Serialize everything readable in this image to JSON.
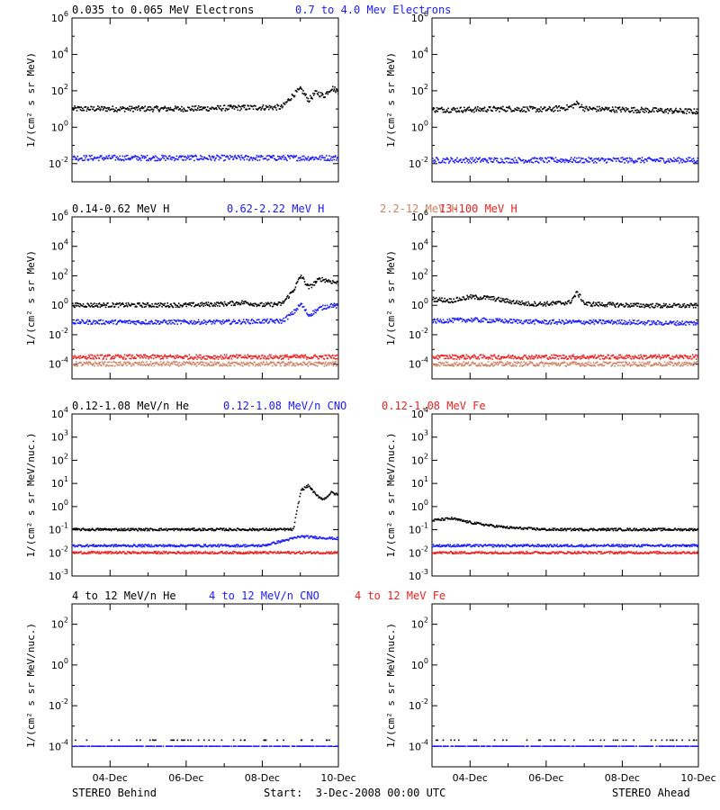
{
  "footer": {
    "left": "STEREO Behind",
    "center": "Start:  3-Dec-2008 00:00 UTC",
    "right": "STEREO Ahead"
  },
  "x_ticks": [
    "04-Dec",
    "06-Dec",
    "08-Dec",
    "10-Dec"
  ],
  "x_range_days": [
    0,
    7
  ],
  "rows": [
    {
      "titles": [
        {
          "text": "0.035 to 0.065 MeV Electrons",
          "color": "#000000"
        },
        {
          "text": "0.7 to 4.0 Mev Electrons",
          "color": "#1a1aff"
        }
      ],
      "ylabel": "1/(cm² s sr MeV)",
      "yticks": [
        {
          "base": "10",
          "exp": "6"
        },
        {
          "base": "10",
          "exp": "4"
        },
        {
          "base": "10",
          "exp": "2"
        },
        {
          "base": "10",
          "exp": "0"
        },
        {
          "base": "10",
          "exp": "-2"
        }
      ]
    },
    {
      "titles": [
        {
          "text": "0.14-0.62 MeV H",
          "color": "#000000"
        },
        {
          "text": "0.62-2.22 MeV H",
          "color": "#1a1aff"
        },
        {
          "text": "2.2-12 MeV H",
          "color": "#d08060"
        },
        {
          "text": "13-100 MeV H",
          "color": "#ee2020"
        }
      ],
      "ylabel": "1/(cm² s sr MeV)",
      "yticks": [
        {
          "base": "10",
          "exp": "6"
        },
        {
          "base": "10",
          "exp": "4"
        },
        {
          "base": "10",
          "exp": "2"
        },
        {
          "base": "10",
          "exp": "0"
        },
        {
          "base": "10",
          "exp": "-2"
        },
        {
          "base": "10",
          "exp": "-4"
        }
      ]
    },
    {
      "titles": [
        {
          "text": "0.12-1.08 MeV/n He",
          "color": "#000000"
        },
        {
          "text": "0.12-1.08 MeV/n CNO",
          "color": "#1a1aff"
        },
        {
          "text": "0.12-1.08 MeV Fe",
          "color": "#ee2020"
        }
      ],
      "ylabel": "1/(cm² s sr MeV/nuc.)",
      "yticks": [
        {
          "base": "10",
          "exp": "4"
        },
        {
          "base": "10",
          "exp": "3"
        },
        {
          "base": "10",
          "exp": "2"
        },
        {
          "base": "10",
          "exp": "1"
        },
        {
          "base": "10",
          "exp": "0"
        },
        {
          "base": "10",
          "exp": "-1"
        },
        {
          "base": "10",
          "exp": "-2"
        },
        {
          "base": "10",
          "exp": "-3"
        }
      ]
    },
    {
      "titles": [
        {
          "text": "4 to 12 MeV/n He",
          "color": "#000000"
        },
        {
          "text": "4 to 12 MeV/n CNO",
          "color": "#1a1aff"
        },
        {
          "text": "4 to 12 MeV Fe",
          "color": "#ee2020"
        }
      ],
      "ylabel": "1/(cm² s sr MeV/nuc.)",
      "yticks": [
        {
          "base": "10",
          "exp": "2"
        },
        {
          "base": "10",
          "exp": "0"
        },
        {
          "base": "10",
          "exp": "-2"
        },
        {
          "base": "10",
          "exp": "-4"
        }
      ]
    }
  ],
  "chart_data": [
    {
      "type": "scatter",
      "panel": "electrons-behind",
      "x_unit": "days since 3-Dec-2008 00:00 UTC",
      "y_scale": "log",
      "ylim": [
        0.001,
        1000000
      ],
      "series": [
        {
          "name": "0.035 to 0.065 MeV Electrons",
          "color": "#000000",
          "x": [
            0,
            1,
            2,
            3,
            4,
            5,
            5.5,
            5.8,
            6.0,
            6.2,
            6.4,
            6.6,
            6.8,
            7.0
          ],
          "y": [
            10,
            10,
            10,
            10,
            11,
            12,
            12,
            60,
            120,
            30,
            80,
            50,
            140,
            90
          ]
        },
        {
          "name": "0.7 to 4.0 Mev Electrons",
          "color": "#1a1aff",
          "x": [
            0,
            1,
            2,
            3,
            4,
            5,
            6,
            7
          ],
          "y": [
            0.02,
            0.02,
            0.02,
            0.02,
            0.02,
            0.02,
            0.02,
            0.02
          ]
        }
      ]
    },
    {
      "type": "scatter",
      "panel": "electrons-ahead",
      "x_unit": "days since 3-Dec-2008 00:00 UTC",
      "y_scale": "log",
      "ylim": [
        0.001,
        1000000
      ],
      "series": [
        {
          "name": "0.035 to 0.065 MeV Electrons",
          "color": "#000000",
          "x": [
            0,
            1,
            2,
            3,
            3.6,
            3.8,
            4.0,
            5,
            6,
            7
          ],
          "y": [
            9,
            9,
            10,
            9,
            12,
            20,
            10,
            9,
            8,
            7
          ]
        },
        {
          "name": "0.7 to 4.0 Mev Electrons",
          "color": "#1a1aff",
          "x": [
            0,
            1,
            2,
            3,
            4,
            5,
            6,
            7
          ],
          "y": [
            0.015,
            0.015,
            0.015,
            0.015,
            0.015,
            0.015,
            0.015,
            0.015
          ]
        }
      ]
    },
    {
      "type": "scatter",
      "panel": "protons-behind",
      "x_unit": "days since 3-Dec-2008 00:00 UTC",
      "y_scale": "log",
      "ylim": [
        1e-05,
        1000000
      ],
      "series": [
        {
          "name": "0.14-0.62 MeV H",
          "color": "#000000",
          "x": [
            0,
            1,
            2,
            3,
            4,
            4.5,
            5,
            5.5,
            5.8,
            6.0,
            6.2,
            6.5,
            6.8,
            7.0
          ],
          "y": [
            1,
            1,
            1,
            1,
            1.2,
            1.5,
            1,
            1.2,
            10,
            100,
            15,
            60,
            40,
            30
          ]
        },
        {
          "name": "0.62-2.22 MeV H",
          "color": "#1a1aff",
          "x": [
            0,
            1,
            2,
            3,
            4,
            5,
            5.5,
            5.8,
            6.0,
            6.2,
            6.5,
            6.8,
            7.0
          ],
          "y": [
            0.07,
            0.07,
            0.07,
            0.07,
            0.07,
            0.08,
            0.08,
            0.3,
            1.2,
            0.2,
            0.6,
            1,
            0.8
          ]
        },
        {
          "name": "2.2-12 MeV H",
          "color": "#d08060",
          "x": [
            0,
            1,
            2,
            3,
            4,
            5,
            6,
            7
          ],
          "y": [
            0.0001,
            0.0001,
            0.0001,
            0.0001,
            0.0001,
            0.0001,
            0.0001,
            0.0001
          ]
        },
        {
          "name": "13-100 MeV H",
          "color": "#ee2020",
          "x": [
            0,
            1,
            2,
            3,
            4,
            5,
            6,
            7
          ],
          "y": [
            0.0003,
            0.0003,
            0.0003,
            0.0003,
            0.0003,
            0.0003,
            0.0003,
            0.0003
          ]
        }
      ]
    },
    {
      "type": "scatter",
      "panel": "protons-ahead",
      "x_unit": "days since 3-Dec-2008 00:00 UTC",
      "y_scale": "log",
      "ylim": [
        1e-05,
        1000000
      ],
      "series": [
        {
          "name": "0.14-0.62 MeV H",
          "color": "#000000",
          "x": [
            0,
            0.5,
            1,
            1.5,
            2,
            2.5,
            3,
            3.6,
            3.8,
            4.0,
            5,
            6,
            7
          ],
          "y": [
            2.5,
            2,
            3.5,
            3,
            1.8,
            1.2,
            1.2,
            1.5,
            7,
            1.2,
            1,
            0.9,
            0.9
          ]
        },
        {
          "name": "0.62-2.22 MeV H",
          "color": "#1a1aff",
          "x": [
            0,
            1,
            2,
            3,
            4,
            5,
            6,
            7
          ],
          "y": [
            0.08,
            0.1,
            0.08,
            0.07,
            0.07,
            0.07,
            0.06,
            0.06
          ]
        },
        {
          "name": "2.2-12 MeV H",
          "color": "#d08060",
          "x": [
            0,
            1,
            2,
            3,
            4,
            5,
            6,
            7
          ],
          "y": [
            0.0001,
            0.0001,
            0.0001,
            0.0001,
            0.0001,
            0.0001,
            0.0001,
            0.0001
          ]
        },
        {
          "name": "13-100 MeV H",
          "color": "#ee2020",
          "x": [
            0,
            1,
            2,
            3,
            4,
            5,
            6,
            7
          ],
          "y": [
            0.0003,
            0.0003,
            0.0003,
            0.0003,
            0.0003,
            0.0003,
            0.0003,
            0.0003
          ]
        }
      ]
    },
    {
      "type": "scatter",
      "panel": "heavy-low-behind",
      "x_unit": "days since 3-Dec-2008 00:00 UTC",
      "y_scale": "log",
      "ylim": [
        0.001,
        10000
      ],
      "series": [
        {
          "name": "0.12-1.08 MeV/n He",
          "color": "#000000",
          "x": [
            0,
            1,
            2,
            3,
            4,
            5,
            5.8,
            6.0,
            6.2,
            6.4,
            6.6,
            6.8,
            7.0
          ],
          "y": [
            0.1,
            0.1,
            0.1,
            0.1,
            0.1,
            0.1,
            0.1,
            5,
            8,
            3,
            2,
            4,
            3
          ]
        },
        {
          "name": "0.12-1.08 MeV/n CNO",
          "color": "#1a1aff",
          "x": [
            0,
            1,
            2,
            3,
            4,
            5,
            6,
            7
          ],
          "y": [
            0.02,
            0.02,
            0.02,
            0.02,
            0.02,
            0.02,
            0.05,
            0.04
          ]
        },
        {
          "name": "0.12-1.08 MeV Fe",
          "color": "#ee2020",
          "x": [
            0,
            1,
            2,
            3,
            4,
            5,
            6,
            7
          ],
          "y": [
            0.01,
            0.01,
            0.01,
            0.01,
            0.01,
            0.01,
            0.01,
            0.01
          ]
        }
      ]
    },
    {
      "type": "scatter",
      "panel": "heavy-low-ahead",
      "x_unit": "days since 3-Dec-2008 00:00 UTC",
      "y_scale": "log",
      "ylim": [
        0.001,
        10000
      ],
      "series": [
        {
          "name": "0.12-1.08 MeV/n He",
          "color": "#000000",
          "x": [
            0,
            0.5,
            1,
            1.5,
            2,
            3,
            4,
            5,
            6,
            7
          ],
          "y": [
            0.25,
            0.3,
            0.2,
            0.15,
            0.12,
            0.1,
            0.1,
            0.1,
            0.1,
            0.1
          ]
        },
        {
          "name": "0.12-1.08 MeV/n CNO",
          "color": "#1a1aff",
          "x": [
            0,
            1,
            2,
            3,
            4,
            5,
            6,
            7
          ],
          "y": [
            0.02,
            0.02,
            0.02,
            0.02,
            0.02,
            0.02,
            0.02,
            0.02
          ]
        },
        {
          "name": "0.12-1.08 MeV Fe",
          "color": "#ee2020",
          "x": [
            0,
            1,
            2,
            3,
            4,
            5,
            6,
            7
          ],
          "y": [
            0.01,
            0.01,
            0.01,
            0.01,
            0.01,
            0.01,
            0.01,
            0.01
          ]
        }
      ]
    },
    {
      "type": "scatter",
      "panel": "heavy-high-behind",
      "x_unit": "days since 3-Dec-2008 00:00 UTC",
      "y_scale": "log",
      "ylim": [
        1e-05,
        1000
      ],
      "series": [
        {
          "name": "4 to 12 MeV/n He",
          "color": "#000000",
          "x": [
            0.5,
            1.5,
            2.5,
            3.5,
            4.5,
            5.5,
            6.5
          ],
          "y": [
            0.0002,
            0.0002,
            0.0002,
            0.0002,
            0.0002,
            0.0002,
            0.0002
          ]
        },
        {
          "name": "4 to 12 MeV/n CNO",
          "color": "#1a1aff",
          "x": [
            0,
            1,
            2,
            3,
            4,
            5,
            6,
            7
          ],
          "y": [
            0.0001,
            0.0001,
            0.0001,
            0.0001,
            0.0001,
            0.0001,
            0.0001,
            0.0001
          ]
        }
      ]
    },
    {
      "type": "scatter",
      "panel": "heavy-high-ahead",
      "x_unit": "days since 3-Dec-2008 00:00 UTC",
      "y_scale": "log",
      "ylim": [
        1e-05,
        1000
      ],
      "series": [
        {
          "name": "4 to 12 MeV/n He",
          "color": "#000000",
          "x": [
            0.5,
            1.5,
            2.5,
            3.5,
            4.5,
            5.5,
            6.5
          ],
          "y": [
            0.0002,
            0.0002,
            0.0002,
            0.0002,
            0.0002,
            0.0002,
            0.0002
          ]
        },
        {
          "name": "4 to 12 MeV/n CNO",
          "color": "#1a1aff",
          "x": [
            0,
            1,
            2,
            3,
            4,
            5,
            6,
            7
          ],
          "y": [
            0.0001,
            0.0001,
            0.0001,
            0.0001,
            0.0001,
            0.0001,
            0.0001,
            0.0001
          ]
        }
      ]
    }
  ]
}
